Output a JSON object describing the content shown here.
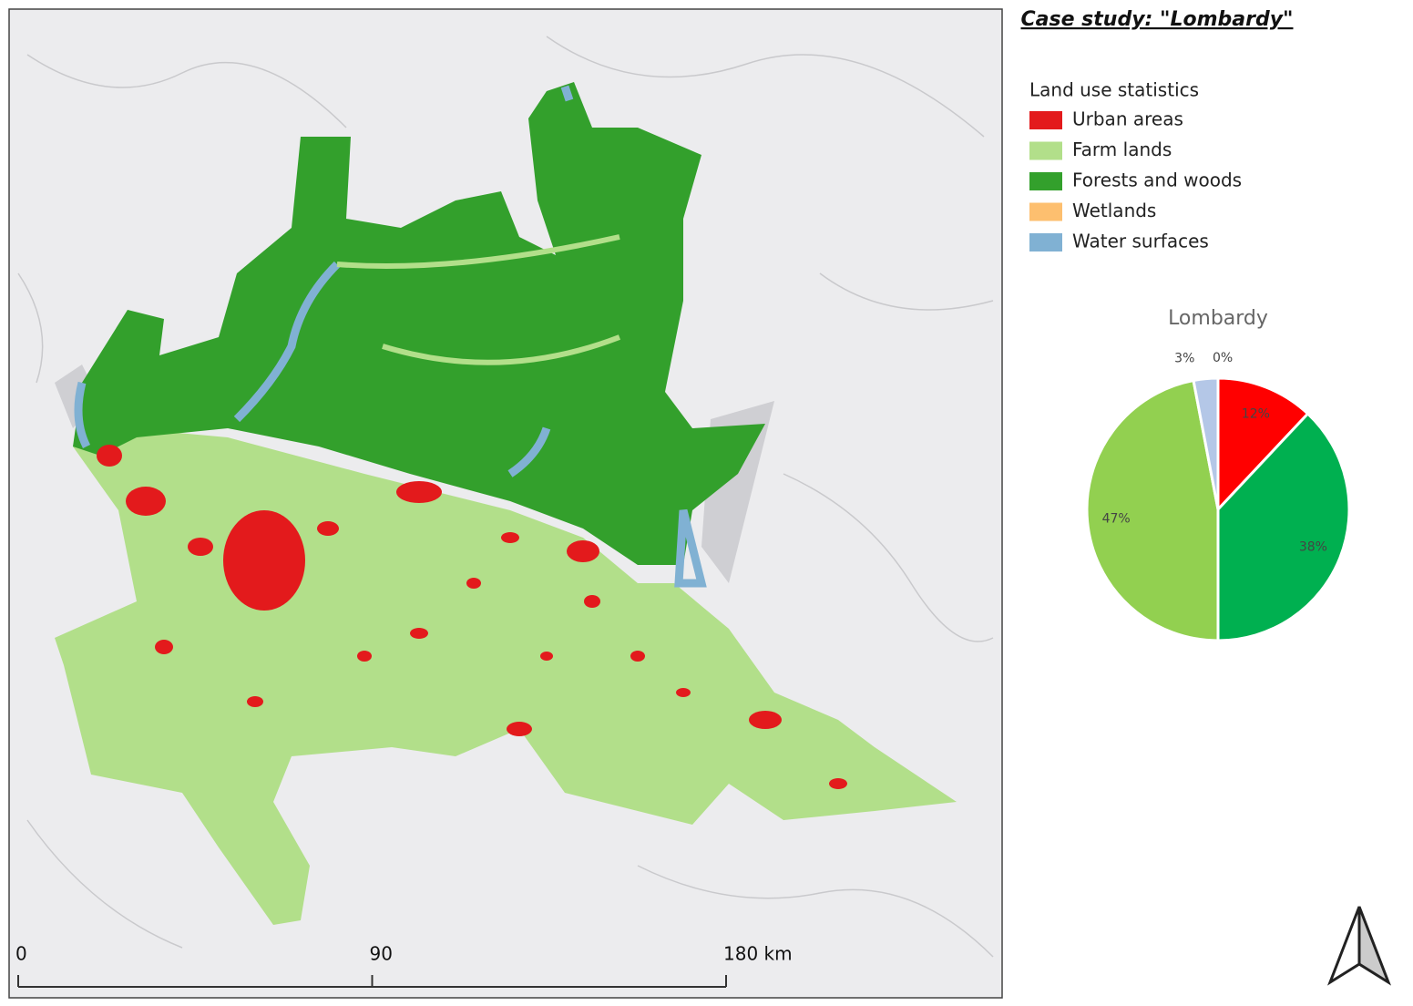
{
  "title": "Case study: \"Lombardy\"",
  "legend": {
    "title": "Land use statistics",
    "items": [
      {
        "label": "Urban areas",
        "color": "#e31a1c"
      },
      {
        "label": "Farm lands",
        "color": "#b2df8a"
      },
      {
        "label": "Forests and woods",
        "color": "#33a02c"
      },
      {
        "label": "Wetlands",
        "color": "#fdbf6f"
      },
      {
        "label": "Water surfaces",
        "color": "#80b1d3"
      }
    ]
  },
  "chart_data": {
    "type": "pie",
    "title": "Lombardy",
    "values": [
      12,
      38,
      47,
      3,
      0
    ],
    "value_labels": [
      "12%",
      "38%",
      "47%",
      "3%",
      "0%"
    ],
    "colors": [
      "#ff0000",
      "#00b050",
      "#92d050",
      "#b4c7e7",
      "#ffc000"
    ]
  },
  "scale_bar": {
    "ticks": [
      0,
      90,
      {
        "value": 180,
        "label": "180 km"
      }
    ]
  }
}
